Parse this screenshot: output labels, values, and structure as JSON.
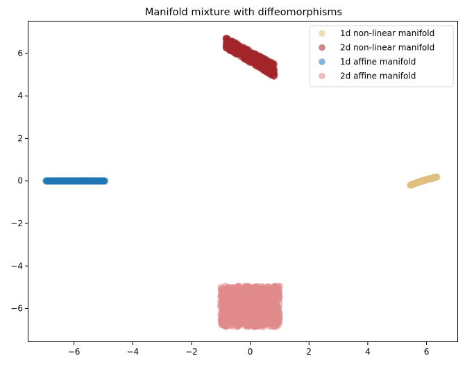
{
  "chart_data": {
    "type": "scatter",
    "title": "Manifold mixture with diffeomorphisms",
    "xlabel": "",
    "ylabel": "",
    "xlim": [
      -7.55,
      7.05
    ],
    "ylim": [
      -7.55,
      7.5
    ],
    "xticks": [
      -6,
      -4,
      -2,
      0,
      2,
      4,
      6
    ],
    "xtick_labels": [
      "−6",
      "−4",
      "−2",
      "0",
      "2",
      "4",
      "6"
    ],
    "yticks": [
      -6,
      -4,
      -2,
      0,
      2,
      4,
      6
    ],
    "ytick_labels": [
      "−6",
      "−4",
      "−2",
      "0",
      "2",
      "4",
      "6"
    ],
    "grid": false,
    "legend_position": "top-right",
    "series": [
      {
        "name": "1d non-linear manifold",
        "color": "#e0c080",
        "alpha": 0.55,
        "kind": "curve",
        "x_range": [
          5.45,
          6.35
        ],
        "y_start": -0.2,
        "y_end": 0.18,
        "count": 70
      },
      {
        "name": "2d non-linear manifold",
        "color": "#a3262a",
        "alpha": 0.55,
        "kind": "band",
        "x_range": [
          -0.82,
          0.82
        ],
        "y_top_start": 6.75,
        "y_top_end": 5.5,
        "y_bottom_start": 6.25,
        "y_bottom_end": 4.9,
        "count": 500
      },
      {
        "name": "1d affine manifold",
        "color": "#1f77b4",
        "alpha": 0.55,
        "kind": "line",
        "x_range": [
          -6.95,
          -4.95
        ],
        "y": 0.0,
        "count": 110
      },
      {
        "name": "2d affine manifold",
        "color": "#e08a8c",
        "alpha": 0.55,
        "kind": "rect",
        "x_range": [
          -1.0,
          1.0
        ],
        "y_range": [
          -6.85,
          -4.95
        ],
        "count": 900
      }
    ]
  }
}
